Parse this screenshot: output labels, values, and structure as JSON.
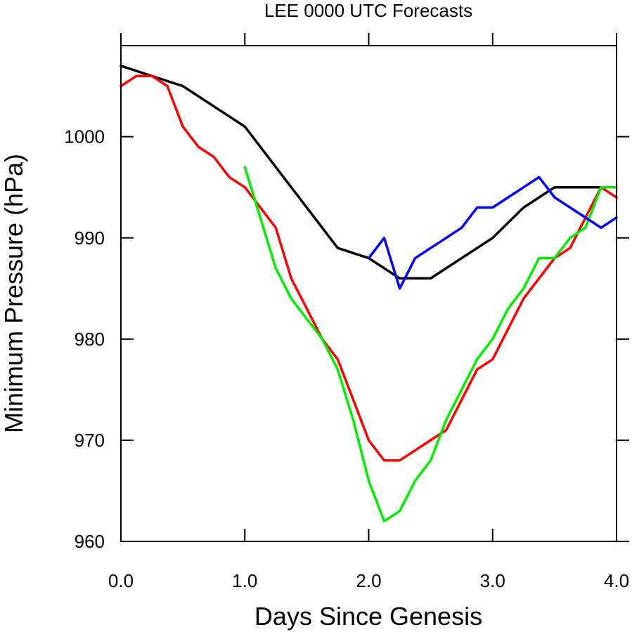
{
  "chart_data": {
    "type": "line",
    "title": "LEE 0000 UTC Forecasts",
    "xlabel": "Days Since Genesis",
    "ylabel": "Minimum Pressure (hPa)",
    "xlim": [
      0.0,
      4.0
    ],
    "ylim": [
      960,
      1009
    ],
    "x_ticks": [
      {
        "value": 0.0,
        "label": "0.0"
      },
      {
        "value": 1.0,
        "label": "1.0"
      },
      {
        "value": 2.0,
        "label": "2.0"
      },
      {
        "value": 3.0,
        "label": "3.0"
      },
      {
        "value": 4.0,
        "label": "4.0"
      }
    ],
    "y_ticks": [
      {
        "value": 960,
        "label": "960"
      },
      {
        "value": 970,
        "label": "970"
      },
      {
        "value": 980,
        "label": "980"
      },
      {
        "value": 990,
        "label": "990"
      },
      {
        "value": 1000,
        "label": "1000"
      }
    ],
    "grid": false,
    "series": [
      {
        "color": "#000000",
        "x": [
          0.0,
          0.5,
          1.0,
          1.75,
          2.0,
          2.25,
          2.5,
          3.0,
          3.25,
          3.5,
          3.75,
          3.875
        ],
        "y": [
          1007,
          1005,
          1001,
          989,
          988,
          986,
          986,
          990,
          993,
          995,
          995,
          995
        ]
      },
      {
        "color": "#ff0000",
        "x": [
          0.0,
          0.125,
          0.25,
          0.375,
          0.5,
          0.625,
          0.75,
          0.875,
          1.0,
          1.125,
          1.25,
          1.375,
          1.5,
          1.625,
          1.75,
          1.875,
          2.0,
          2.125,
          2.25,
          2.375,
          2.5,
          2.625,
          2.75,
          2.875,
          3.0,
          3.125,
          3.25,
          3.375,
          3.5,
          3.625,
          3.75,
          3.875,
          4.0
        ],
        "y": [
          1005,
          1006,
          1006,
          1005,
          1001,
          999,
          998,
          996,
          995,
          993,
          991,
          986,
          983,
          980,
          978,
          974,
          970,
          968,
          968,
          969,
          970,
          971,
          974,
          977,
          978,
          981,
          984,
          986,
          988,
          989,
          992,
          995,
          994
        ]
      },
      {
        "color": "#00ee00",
        "x": [
          1.0,
          1.125,
          1.25,
          1.375,
          1.5,
          1.625,
          1.75,
          1.875,
          2.0,
          2.125,
          2.25,
          2.375,
          2.5,
          2.625,
          2.75,
          2.875,
          3.0,
          3.125,
          3.25,
          3.375,
          3.5,
          3.625,
          3.75,
          3.875,
          4.0
        ],
        "y": [
          997,
          992,
          987,
          984,
          982,
          980,
          977,
          972,
          966,
          962,
          963,
          966,
          968,
          972,
          975,
          978,
          980,
          983,
          985,
          988,
          988,
          990,
          991,
          995,
          995
        ]
      },
      {
        "color": "#0000ff",
        "x": [
          2.0,
          2.125,
          2.25,
          2.375,
          2.5,
          2.625,
          2.75,
          2.875,
          3.0,
          3.125,
          3.25,
          3.375,
          3.5,
          3.625,
          3.75,
          3.875,
          4.0
        ],
        "y": [
          988,
          990,
          985,
          988,
          989,
          990,
          991,
          993,
          993,
          994,
          995,
          996,
          994,
          993,
          992,
          991,
          992
        ]
      }
    ]
  }
}
